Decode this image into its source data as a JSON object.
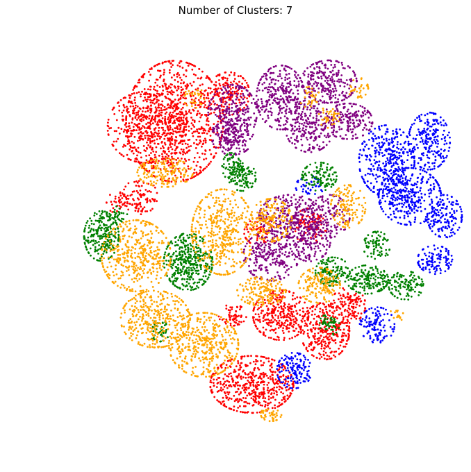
{
  "chart_data": {
    "type": "scatter",
    "title": "Number of Clusters: 7",
    "xlabel": "",
    "ylabel": "",
    "axes_visible": false,
    "grid": false,
    "legend": "none",
    "xlim": [
      -100,
      100
    ],
    "ylim": [
      -100,
      100
    ],
    "marker_size": "small",
    "series": [
      {
        "color": "#ff0000",
        "regions": [
          {
            "x": -40,
            "y": 58,
            "sx": 14,
            "sy": 17,
            "n": 900
          },
          {
            "x": -55,
            "y": 55,
            "sx": 11,
            "sy": 10,
            "n": 350
          },
          {
            "x": -12,
            "y": 72,
            "sx": 6,
            "sy": 6,
            "n": 150
          },
          {
            "x": -58,
            "y": 20,
            "sx": 5,
            "sy": 5,
            "n": 90
          },
          {
            "x": -70,
            "y": 17,
            "sx": 3,
            "sy": 3,
            "n": 40
          },
          {
            "x": 15,
            "y": -40,
            "sx": 8,
            "sy": 7,
            "n": 320
          },
          {
            "x": 38,
            "y": -48,
            "sx": 7,
            "sy": 8,
            "n": 300
          },
          {
            "x": 50,
            "y": -35,
            "sx": 5,
            "sy": 5,
            "n": 120
          },
          {
            "x": 0,
            "y": -75,
            "sx": 12,
            "sy": 8,
            "n": 520
          },
          {
            "x": 5,
            "y": 2,
            "sx": 5,
            "sy": 4,
            "n": 70
          },
          {
            "x": 30,
            "y": 5,
            "sx": 5,
            "sy": 5,
            "n": 90
          },
          {
            "x": -10,
            "y": -40,
            "sx": 4,
            "sy": 3,
            "n": 60
          }
        ]
      },
      {
        "color": "#800080",
        "regions": [
          {
            "x": -10,
            "y": 62,
            "sx": 7,
            "sy": 8,
            "n": 260
          },
          {
            "x": 15,
            "y": 70,
            "sx": 7,
            "sy": 9,
            "n": 320
          },
          {
            "x": 40,
            "y": 78,
            "sx": 8,
            "sy": 6,
            "n": 250
          },
          {
            "x": 30,
            "y": 55,
            "sx": 7,
            "sy": 7,
            "n": 220
          },
          {
            "x": 50,
            "y": 58,
            "sx": 7,
            "sy": 5,
            "n": 180
          },
          {
            "x": -10,
            "y": 50,
            "sx": 6,
            "sy": 5,
            "n": 160
          },
          {
            "x": 20,
            "y": 10,
            "sx": 9,
            "sy": 6,
            "n": 260
          },
          {
            "x": 10,
            "y": -10,
            "sx": 8,
            "sy": 7,
            "n": 260
          },
          {
            "x": 30,
            "y": -2,
            "sx": 6,
            "sy": 6,
            "n": 160
          },
          {
            "x": 40,
            "y": 10,
            "sx": 6,
            "sy": 6,
            "n": 140
          }
        ]
      },
      {
        "color": "#0000ff",
        "regions": [
          {
            "x": 70,
            "y": 38,
            "sx": 8,
            "sy": 10,
            "n": 380
          },
          {
            "x": 82,
            "y": 20,
            "sx": 9,
            "sy": 8,
            "n": 340
          },
          {
            "x": 92,
            "y": 48,
            "sx": 6,
            "sy": 8,
            "n": 220
          },
          {
            "x": 100,
            "y": 10,
            "sx": 5,
            "sy": 6,
            "n": 140
          },
          {
            "x": 95,
            "y": -12,
            "sx": 5,
            "sy": 4,
            "n": 110
          },
          {
            "x": 65,
            "y": -45,
            "sx": 5,
            "sy": 5,
            "n": 120
          },
          {
            "x": 22,
            "y": -68,
            "sx": 5,
            "sy": 5,
            "n": 140
          },
          {
            "x": 30,
            "y": 25,
            "sx": 4,
            "sy": 3,
            "n": 40
          }
        ]
      },
      {
        "color": "#008000",
        "regions": [
          {
            "x": -78,
            "y": 0,
            "sx": 5,
            "sy": 7,
            "n": 240
          },
          {
            "x": -33,
            "y": -13,
            "sx": 7,
            "sy": 8,
            "n": 380
          },
          {
            "x": -10,
            "y": 35,
            "sx": 3,
            "sy": 4,
            "n": 80
          },
          {
            "x": -5,
            "y": 30,
            "sx": 4,
            "sy": 4,
            "n": 90
          },
          {
            "x": 35,
            "y": 30,
            "sx": 5,
            "sy": 4,
            "n": 110
          },
          {
            "x": 42,
            "y": -18,
            "sx": 5,
            "sy": 4,
            "n": 140
          },
          {
            "x": 60,
            "y": -22,
            "sx": 6,
            "sy": 4,
            "n": 170
          },
          {
            "x": 80,
            "y": -25,
            "sx": 5,
            "sy": 4,
            "n": 120
          },
          {
            "x": 65,
            "y": -5,
            "sx": 4,
            "sy": 4,
            "n": 80
          },
          {
            "x": 40,
            "y": -45,
            "sx": 3,
            "sy": 3,
            "n": 50
          },
          {
            "x": -48,
            "y": -48,
            "sx": 3,
            "sy": 3,
            "n": 40
          },
          {
            "x": -70,
            "y": 12,
            "sx": 3,
            "sy": 3,
            "n": 30
          }
        ]
      },
      {
        "color": "#ffa500",
        "regions": [
          {
            "x": -60,
            "y": -10,
            "sx": 10,
            "sy": 10,
            "n": 420
          },
          {
            "x": -50,
            "y": -42,
            "sx": 10,
            "sy": 8,
            "n": 360
          },
          {
            "x": -25,
            "y": -55,
            "sx": 10,
            "sy": 9,
            "n": 400
          },
          {
            "x": -15,
            "y": 2,
            "sx": 9,
            "sy": 12,
            "n": 420
          },
          {
            "x": 10,
            "y": 8,
            "sx": 6,
            "sy": 6,
            "n": 180
          },
          {
            "x": 35,
            "y": -25,
            "sx": 6,
            "sy": 5,
            "n": 160
          },
          {
            "x": 50,
            "y": 15,
            "sx": 5,
            "sy": 6,
            "n": 130
          },
          {
            "x": -45,
            "y": 32,
            "sx": 8,
            "sy": 4,
            "n": 160
          },
          {
            "x": 5,
            "y": -28,
            "sx": 7,
            "sy": 4,
            "n": 160
          },
          {
            "x": 10,
            "y": -90,
            "sx": 3,
            "sy": 2,
            "n": 40
          },
          {
            "x": 55,
            "y": 75,
            "sx": 3,
            "sy": 3,
            "n": 30
          },
          {
            "x": 40,
            "y": 60,
            "sx": 3,
            "sy": 3,
            "n": 40
          },
          {
            "x": 75,
            "y": -40,
            "sx": 2,
            "sy": 2,
            "n": 15
          },
          {
            "x": 30,
            "y": 70,
            "sx": 3,
            "sy": 3,
            "n": 30
          },
          {
            "x": -30,
            "y": 70,
            "sx": 3,
            "sy": 3,
            "n": 30
          }
        ]
      }
    ]
  }
}
